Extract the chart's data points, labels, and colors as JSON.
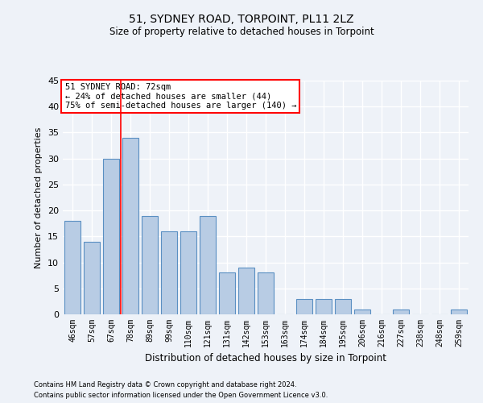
{
  "title1": "51, SYDNEY ROAD, TORPOINT, PL11 2LZ",
  "title2": "Size of property relative to detached houses in Torpoint",
  "xlabel": "Distribution of detached houses by size in Torpoint",
  "ylabel": "Number of detached properties",
  "categories": [
    "46sqm",
    "57sqm",
    "67sqm",
    "78sqm",
    "89sqm",
    "99sqm",
    "110sqm",
    "121sqm",
    "131sqm",
    "142sqm",
    "153sqm",
    "163sqm",
    "174sqm",
    "184sqm",
    "195sqm",
    "206sqm",
    "216sqm",
    "227sqm",
    "238sqm",
    "248sqm",
    "259sqm"
  ],
  "values": [
    18,
    14,
    30,
    34,
    19,
    16,
    16,
    19,
    8,
    9,
    8,
    0,
    3,
    3,
    3,
    1,
    0,
    1,
    0,
    0,
    1
  ],
  "bar_color": "#b8cce4",
  "bar_edge_color": "#5a8fc2",
  "background_color": "#eef2f8",
  "grid_color": "#ffffff",
  "ylim": [
    0,
    45
  ],
  "yticks": [
    0,
    5,
    10,
    15,
    20,
    25,
    30,
    35,
    40,
    45
  ],
  "red_line_x": 2.5,
  "annotation_title": "51 SYDNEY ROAD: 72sqm",
  "annotation_line1": "← 24% of detached houses are smaller (44)",
  "annotation_line2": "75% of semi-detached houses are larger (140) →",
  "footer1": "Contains HM Land Registry data © Crown copyright and database right 2024.",
  "footer2": "Contains public sector information licensed under the Open Government Licence v3.0."
}
